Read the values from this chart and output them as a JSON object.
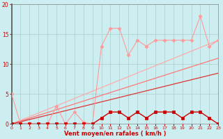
{
  "background_color": "#cceef0",
  "grid_color": "#aacccc",
  "xlabel": "Vent moyen/en rafales ( km/h )",
  "xlabel_color": "#cc0000",
  "tick_color": "#cc0000",
  "xlim": [
    0,
    23
  ],
  "ylim": [
    0,
    20
  ],
  "xticks": [
    0,
    1,
    2,
    3,
    4,
    5,
    6,
    7,
    8,
    9,
    10,
    11,
    12,
    13,
    14,
    15,
    16,
    17,
    18,
    19,
    20,
    21,
    22,
    23
  ],
  "yticks": [
    0,
    5,
    10,
    15,
    20
  ],
  "line_pink": {
    "x": [
      0,
      1,
      2,
      3,
      4,
      5,
      6,
      7,
      8,
      9,
      10,
      11,
      12,
      13,
      14,
      15,
      16,
      17,
      18,
      19,
      20,
      21,
      22,
      23
    ],
    "y": [
      5,
      0,
      0,
      0,
      0,
      3,
      0,
      2,
      0.3,
      0,
      13,
      16,
      16,
      11.5,
      14,
      13,
      14,
      14,
      14,
      14,
      14,
      18,
      13,
      14
    ],
    "color": "#ff9999",
    "marker": "D",
    "markersize": 2.5,
    "linewidth": 0.8
  },
  "line_dark": {
    "x": [
      0,
      1,
      2,
      3,
      4,
      5,
      6,
      7,
      8,
      9,
      10,
      11,
      12,
      13,
      14,
      15,
      16,
      17,
      18,
      19,
      20,
      21,
      22,
      23
    ],
    "y": [
      0,
      0,
      0,
      0,
      0,
      0,
      0,
      0,
      0,
      0,
      1,
      2,
      2,
      1,
      2,
      1,
      2,
      2,
      2,
      1,
      2,
      2,
      1,
      0
    ],
    "color": "#cc0000",
    "marker": "s",
    "markersize": 2.5,
    "linewidth": 1.0
  },
  "line_diag1": {
    "x": [
      0,
      23
    ],
    "y": [
      0,
      14
    ],
    "color": "#ffaaaa",
    "linewidth": 0.9
  },
  "line_diag2": {
    "x": [
      0,
      23
    ],
    "y": [
      0,
      11
    ],
    "color": "#ff7777",
    "linewidth": 0.9
  },
  "line_diag3": {
    "x": [
      0,
      23
    ],
    "y": [
      0,
      8.5
    ],
    "color": "#dd3333",
    "linewidth": 0.9
  }
}
